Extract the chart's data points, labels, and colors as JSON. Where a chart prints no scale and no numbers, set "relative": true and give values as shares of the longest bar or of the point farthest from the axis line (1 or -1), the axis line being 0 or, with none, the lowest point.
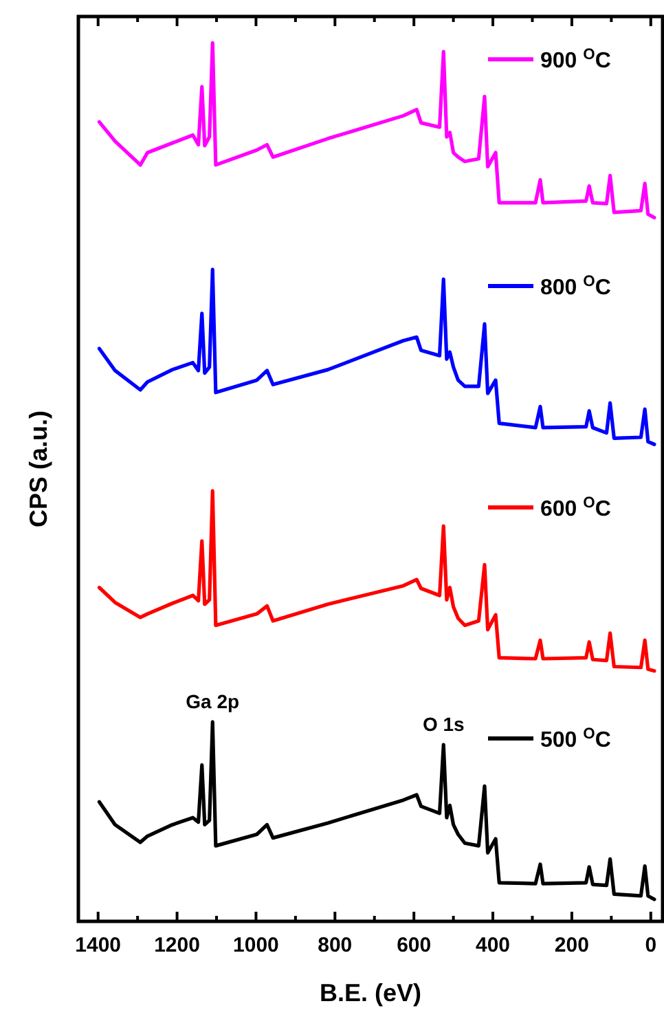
{
  "chart_data": {
    "type": "line",
    "relative": true,
    "xlabel": "B.E. (eV)",
    "ylabel": "CPS (a.u.)",
    "x": [
      1397,
      1357,
      1293,
      1275,
      1212,
      1160,
      1146,
      1137,
      1130,
      1118,
      1110,
      1102,
      998,
      972,
      957,
      818,
      627,
      593,
      582,
      535,
      525,
      517,
      509,
      500,
      488,
      471,
      436,
      421,
      413,
      393,
      384,
      292,
      280,
      273,
      164,
      156,
      147,
      112,
      103,
      93,
      25,
      15,
      7,
      -9
    ],
    "xlim": [
      1450,
      -30
    ],
    "xticks": [
      1400,
      {
        "value": 1300,
        "label": null
      },
      1200,
      {
        "value": 1100,
        "label": null
      },
      1000,
      {
        "value": 900,
        "label": null
      },
      800,
      {
        "value": 700,
        "label": null
      },
      600,
      {
        "value": 500,
        "label": null
      },
      400,
      {
        "value": 300,
        "label": null
      },
      200,
      {
        "value": 100,
        "label": null
      },
      0
    ],
    "series": [
      {
        "name": "500 $^{O}$C",
        "color": "#000000",
        "values": [
          0.136,
          0.11,
          0.09,
          0.097,
          0.11,
          0.118,
          0.113,
          0.178,
          0.11,
          0.115,
          0.227,
          0.086,
          0.099,
          0.11,
          0.095,
          0.112,
          0.138,
          0.144,
          0.131,
          0.123,
          0.201,
          0.118,
          0.132,
          0.11,
          0.099,
          0.089,
          0.086,
          0.154,
          0.078,
          0.094,
          0.044,
          0.043,
          0.065,
          0.043,
          0.044,
          0.062,
          0.042,
          0.041,
          0.071,
          0.031,
          0.029,
          0.063,
          0.029,
          0.025
        ]
      },
      {
        "name": "600 $^{O}$C",
        "color": "#ff0000",
        "values": [
          0.38,
          0.363,
          0.346,
          0.35,
          0.362,
          0.371,
          0.365,
          0.433,
          0.361,
          0.366,
          0.49,
          0.337,
          0.35,
          0.359,
          0.342,
          0.361,
          0.382,
          0.389,
          0.379,
          0.371,
          0.45,
          0.366,
          0.38,
          0.358,
          0.345,
          0.337,
          0.342,
          0.406,
          0.332,
          0.349,
          0.3,
          0.299,
          0.32,
          0.299,
          0.3,
          0.318,
          0.298,
          0.297,
          0.328,
          0.29,
          0.289,
          0.32,
          0.287,
          0.285
        ]
      },
      {
        "name": "800 $^{O}$C",
        "color": "#0000ff",
        "values": [
          0.652,
          0.627,
          0.605,
          0.614,
          0.628,
          0.636,
          0.627,
          0.692,
          0.624,
          0.631,
          0.742,
          0.602,
          0.616,
          0.627,
          0.611,
          0.628,
          0.661,
          0.665,
          0.65,
          0.644,
          0.731,
          0.64,
          0.648,
          0.631,
          0.616,
          0.609,
          0.609,
          0.68,
          0.601,
          0.616,
          0.567,
          0.562,
          0.586,
          0.562,
          0.563,
          0.581,
          0.562,
          0.556,
          0.59,
          0.55,
          0.551,
          0.583,
          0.546,
          0.543
        ]
      },
      {
        "name": "900 $^{O}$C",
        "color": "#ff00ff",
        "values": [
          0.91,
          0.888,
          0.861,
          0.875,
          0.886,
          0.895,
          0.884,
          0.95,
          0.883,
          0.893,
          1.0,
          0.861,
          0.878,
          0.884,
          0.87,
          0.891,
          0.917,
          0.924,
          0.909,
          0.904,
          0.99,
          0.893,
          0.898,
          0.875,
          0.87,
          0.865,
          0.868,
          0.939,
          0.859,
          0.875,
          0.818,
          0.818,
          0.844,
          0.818,
          0.82,
          0.837,
          0.818,
          0.817,
          0.849,
          0.807,
          0.809,
          0.84,
          0.805,
          0.801
        ]
      }
    ],
    "annotations": [
      {
        "text": "Ga 2p",
        "x": 1110,
        "y": 0.227
      },
      {
        "text": "O 1s",
        "x": 525,
        "y": 0.201
      }
    ],
    "legend": "right",
    "grid": false,
    "marker": "none",
    "line_style": "solid"
  }
}
